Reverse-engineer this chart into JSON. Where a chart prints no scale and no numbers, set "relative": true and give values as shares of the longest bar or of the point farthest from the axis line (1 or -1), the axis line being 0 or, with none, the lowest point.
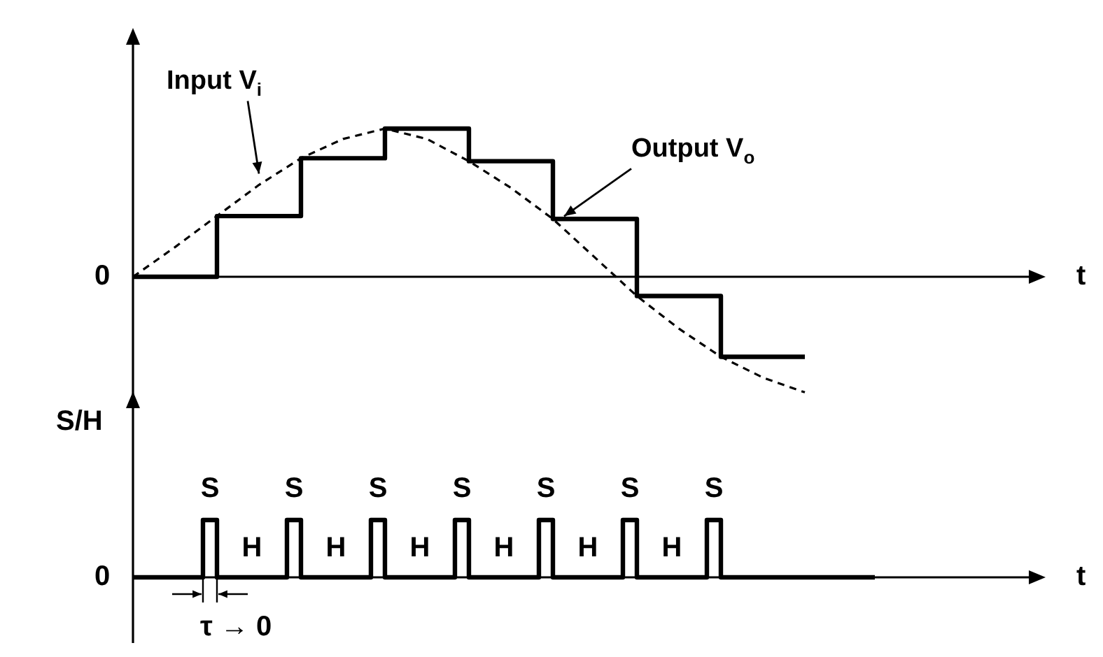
{
  "chart_data": [
    {
      "type": "line",
      "relative": true,
      "categories": [
        null,
        null,
        null,
        null,
        null,
        null,
        null,
        null,
        null,
        null,
        null,
        null,
        null,
        null,
        null,
        null,
        null,
        null,
        null,
        null,
        null,
        null,
        null
      ],
      "xlabel": "t",
      "legend": false,
      "tick_labels": false,
      "marker": "none",
      "annotations": [
        "0"
      ],
      "series": [
        {
          "name": "Input V$_{i}$",
          "color": "#000000",
          "line_style": "dashed",
          "values": [
            0,
            0.2,
            0.41,
            0.62,
            0.8,
            0.93,
            1.0,
            0.93,
            0.78,
            0.6,
            0.39,
            0.13,
            -0.13,
            -0.35,
            -0.54,
            -0.68,
            -0.78,
            null,
            null,
            null,
            null,
            null,
            null
          ]
        },
        {
          "name": "Output V$_{o}$",
          "type": "step",
          "color": "#000000",
          "values": [
            0,
            0,
            0.41,
            0.41,
            0.8,
            0.8,
            1.0,
            1.0,
            0.78,
            0.78,
            0.39,
            0.39,
            -0.13,
            -0.13,
            -0.54,
            -0.54,
            -0.54,
            null,
            null,
            null,
            null,
            null,
            null
          ]
        }
      ]
    },
    {
      "type": "step",
      "relative": true,
      "categories": [
        null,
        null,
        null,
        null,
        null,
        null,
        null,
        null,
        null,
        null,
        null,
        null,
        null,
        null,
        null,
        null,
        null,
        null,
        null,
        null,
        null,
        null,
        null,
        null,
        null,
        null,
        null,
        null,
        null,
        null,
        null,
        null,
        null,
        null,
        null,
        null,
        null,
        null,
        null,
        null,
        null,
        null,
        null,
        null,
        null,
        null,
        null,
        null,
        null,
        null,
        null,
        null,
        null,
        null,
        null,
        null,
        null,
        null,
        null,
        null,
        null,
        null,
        null,
        null,
        null,
        null,
        null
      ],
      "ylabel": "S/H",
      "xlabel": "t",
      "legend": false,
      "tick_labels": false,
      "marker": "none",
      "annotations": [
        "0",
        "S",
        "H",
        "S",
        "H",
        "S",
        "H",
        "S",
        "H",
        "S",
        "H",
        "S",
        "H",
        "S",
        "τ → 0"
      ],
      "series": [
        {
          "color": "#000000",
          "values": [
            0,
            0,
            0,
            0,
            0,
            1,
            0,
            0,
            0,
            0,
            0,
            1,
            0,
            0,
            0,
            0,
            0,
            1,
            0,
            0,
            0,
            0,
            0,
            1,
            0,
            0,
            0,
            0,
            0,
            1,
            0,
            0,
            0,
            0,
            0,
            1,
            0,
            0,
            0,
            0,
            0,
            1,
            0,
            0,
            0,
            0,
            0,
            0,
            0,
            0,
            0,
            0,
            0,
            0,
            null,
            null,
            null,
            null,
            null,
            null,
            null,
            null,
            null,
            null,
            null,
            null,
            null
          ]
        }
      ]
    }
  ]
}
